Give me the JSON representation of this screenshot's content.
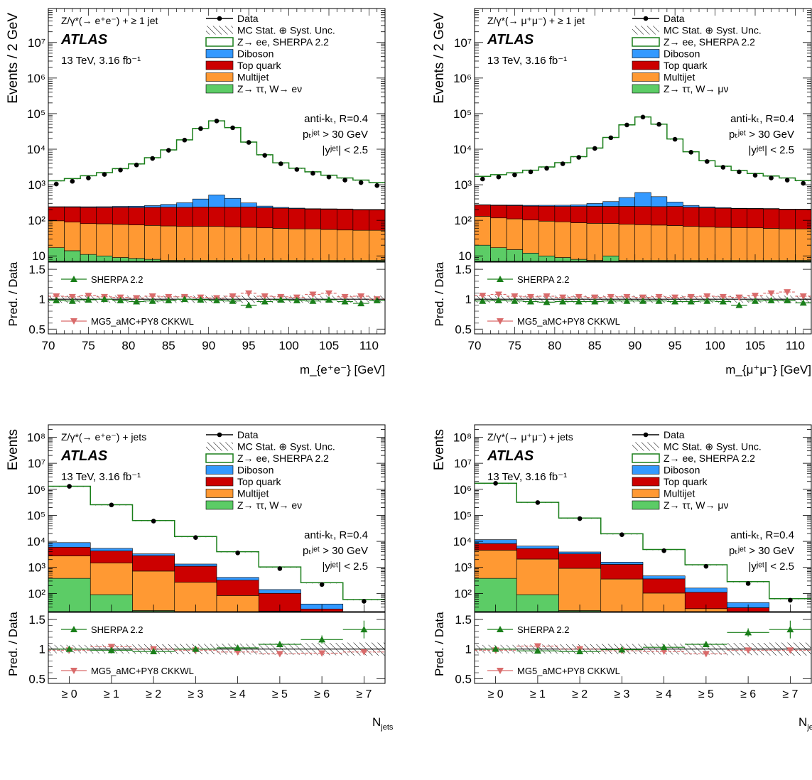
{
  "colors": {
    "data": "#000000",
    "z_mc": "#1a7f1a",
    "diboson": "#3399ff",
    "top": "#cc0000",
    "multijet": "#ff9933",
    "ztautau": "#5ccc66",
    "sherpa_ratio": "#1a7f1a",
    "mg5_ratio": "#d96b6b"
  },
  "common": {
    "atlas": "ATLAS",
    "energy_lumi": "13 TeV, 3.16 fb⁻¹",
    "jet_cuts": [
      "anti-kₜ, R=0.4",
      "pₜʲᵉᵗ > 30 GeV",
      "|yʲᵉᵗ| < 2.5"
    ],
    "ratio_ylabel": "Pred. / Data",
    "ratio_legend": [
      "SHERPA 2.2",
      "MG5_aMC+PY8 CKKWL"
    ]
  },
  "chart_data": [
    {
      "type": "bar",
      "panel": "top-left",
      "ylabel": "Events / 2 GeV",
      "xlabel": "m_{e⁺e⁻} [GeV]",
      "process_label": "Z/γ*(→ e⁺e⁻) + ≥ 1 jet",
      "legend": [
        "Data",
        "MC Stat. ⊕ Syst. Unc.",
        "Z→ ee, SHERPA 2.2",
        "Diboson",
        "Top quark",
        "Multijet",
        "Z→ ττ, W→ eν"
      ],
      "log_y": true,
      "xlim": [
        70,
        112
      ],
      "ylim": [
        7,
        90000000
      ],
      "ratio_ylim": [
        0.42,
        1.62
      ],
      "x_ticks": [
        70,
        75,
        80,
        85,
        90,
        95,
        100,
        105,
        110
      ],
      "y_ticks": [
        "10",
        "10²",
        "10³",
        "10⁴",
        "10⁵",
        "10⁶",
        "10⁷"
      ],
      "ratio_ticks": [
        "0.5",
        "1",
        "1.5"
      ],
      "bin_edges": [
        70,
        72,
        74,
        76,
        78,
        80,
        82,
        84,
        86,
        88,
        90,
        92,
        94,
        96,
        98,
        100,
        102,
        104,
        106,
        108,
        110,
        112
      ],
      "bin_centers": [
        71,
        73,
        75,
        77,
        79,
        81,
        83,
        85,
        87,
        89,
        91,
        93,
        95,
        97,
        99,
        101,
        103,
        105,
        107,
        109,
        111
      ],
      "data": [
        1050,
        1250,
        1550,
        1950,
        2600,
        3600,
        5500,
        9300,
        18000,
        38000,
        62000,
        40000,
        15500,
        6700,
        3900,
        2700,
        2100,
        1650,
        1350,
        1150,
        950
      ],
      "ztautau": [
        17,
        14,
        11,
        10,
        9,
        8.5,
        8,
        7.5,
        7.5,
        7.5,
        7.5,
        7.5,
        7.5,
        7.5,
        7.5,
        7.5,
        7.5,
        7.5,
        7.5,
        7.5,
        7.5
      ],
      "multijet": [
        80,
        75,
        70,
        70,
        68,
        66,
        64,
        62,
        60,
        60,
        60,
        58,
        56,
        54,
        52,
        50,
        50,
        48,
        46,
        45,
        45
      ],
      "top": [
        140,
        145,
        150,
        150,
        155,
        155,
        160,
        165,
        165,
        170,
        170,
        170,
        175,
        165,
        160,
        155,
        150,
        150,
        150,
        145,
        145
      ],
      "diboson": [
        5,
        8,
        10,
        12,
        15,
        20,
        28,
        45,
        80,
        160,
        280,
        180,
        70,
        25,
        12,
        8,
        5,
        5,
        5,
        5,
        5
      ],
      "ratio_sherpa": [
        0.98,
        0.97,
        0.99,
        1.0,
        0.98,
        0.96,
        0.97,
        0.98,
        1.0,
        0.99,
        0.98,
        0.97,
        0.9,
        0.96,
        0.99,
        0.98,
        0.97,
        0.99,
        0.96,
        0.93,
        0.98
      ],
      "ratio_mg5": [
        1.05,
        1.04,
        1.06,
        1.04,
        1.03,
        1.02,
        1.05,
        1.04,
        1.04,
        1.03,
        1.02,
        1.05,
        1.1,
        1.05,
        1.04,
        1.03,
        1.08,
        1.1,
        1.04,
        1.05,
        1.0
      ],
      "unc": 0.06
    },
    {
      "type": "bar",
      "panel": "top-right",
      "ylabel": "Events / 2 GeV",
      "xlabel": "m_{μ⁺μ⁻} [GeV]",
      "process_label": "Z/γ*(→ μ⁺μ⁻) + ≥ 1 jet",
      "legend": [
        "Data",
        "MC Stat. ⊕ Syst. Unc.",
        "Z→ ee, SHERPA 2.2",
        "Diboson",
        "Top quark",
        "Multijet",
        "Z→ ττ, W→ μν"
      ],
      "log_y": true,
      "xlim": [
        70,
        112
      ],
      "ylim": [
        7,
        90000000
      ],
      "ratio_ylim": [
        0.42,
        1.62
      ],
      "x_ticks": [
        70,
        75,
        80,
        85,
        90,
        95,
        100,
        105,
        110
      ],
      "y_ticks": [
        "10",
        "10²",
        "10³",
        "10⁴",
        "10⁵",
        "10⁶",
        "10⁷"
      ],
      "ratio_ticks": [
        "0.5",
        "1",
        "1.5"
      ],
      "bin_edges": [
        70,
        72,
        74,
        76,
        78,
        80,
        82,
        84,
        86,
        88,
        90,
        92,
        94,
        96,
        98,
        100,
        102,
        104,
        106,
        108,
        110,
        112
      ],
      "bin_centers": [
        71,
        73,
        75,
        77,
        79,
        81,
        83,
        85,
        87,
        89,
        91,
        93,
        95,
        97,
        99,
        101,
        103,
        105,
        107,
        109,
        111
      ],
      "data": [
        1450,
        1650,
        1900,
        2300,
        2900,
        3900,
        5900,
        10500,
        21000,
        48000,
        80000,
        50000,
        19000,
        8200,
        4500,
        3100,
        2300,
        1850,
        1550,
        1350,
        1100
      ],
      "ztautau": [
        20,
        17,
        15,
        12,
        10,
        9,
        8,
        7.5,
        10,
        7.5,
        7.5,
        7.5,
        7.5,
        7.5,
        7.5,
        7.5,
        7.5,
        7.5,
        7.5,
        7.5,
        7.5
      ],
      "multijet": [
        110,
        100,
        95,
        90,
        85,
        82,
        78,
        75,
        72,
        70,
        68,
        66,
        64,
        60,
        58,
        56,
        55,
        54,
        52,
        50,
        50
      ],
      "top": [
        140,
        145,
        150,
        150,
        155,
        155,
        160,
        165,
        165,
        170,
        170,
        170,
        175,
        165,
        160,
        155,
        150,
        150,
        150,
        145,
        145
      ],
      "diboson": [
        5,
        8,
        10,
        12,
        15,
        20,
        28,
        50,
        90,
        190,
        360,
        220,
        80,
        30,
        14,
        9,
        6,
        5,
        5,
        5,
        5
      ],
      "ratio_sherpa": [
        0.97,
        0.98,
        0.97,
        0.96,
        0.95,
        0.96,
        0.96,
        0.96,
        0.97,
        0.97,
        0.97,
        0.97,
        0.96,
        0.96,
        0.97,
        0.96,
        0.9,
        0.97,
        0.98,
        0.98,
        0.94
      ],
      "ratio_mg5": [
        1.06,
        1.08,
        1.05,
        1.04,
        1.05,
        1.03,
        1.04,
        1.03,
        1.04,
        1.04,
        1.03,
        1.04,
        1.03,
        1.04,
        1.05,
        1.04,
        1.03,
        1.06,
        1.1,
        1.12,
        1.05
      ],
      "unc": 0.06
    },
    {
      "type": "bar",
      "panel": "bottom-left",
      "ylabel": "Events",
      "xlabel": "N_jets",
      "process_label": "Z/γ*(→ e⁺e⁻) + jets",
      "legend": [
        "Data",
        "MC Stat. ⊕ Syst. Unc.",
        "Z→ ee, SHERPA 2.2",
        "Diboson",
        "Top quark",
        "Multijet",
        "Z→ ττ, W→ eν"
      ],
      "log_y": true,
      "xlim": [
        -0.5,
        7.5
      ],
      "ylim": [
        20,
        300000000
      ],
      "ratio_ylim": [
        0.42,
        1.62
      ],
      "categories": [
        "≥ 0",
        "≥ 1",
        "≥ 2",
        "≥ 3",
        "≥ 4",
        "≥ 5",
        "≥ 6",
        "≥ 7"
      ],
      "y_ticks": [
        "10²",
        "10³",
        "10⁴",
        "10⁵",
        "10⁶",
        "10⁷",
        "10⁸"
      ],
      "ratio_ticks": [
        "0.5",
        "1",
        "1.5"
      ],
      "data": [
        1300000,
        250000,
        60000,
        14000,
        3600,
        900,
        220,
        50
      ],
      "ztautau": [
        380,
        90,
        22,
        8,
        3,
        1,
        0.3,
        0.1
      ],
      "multijet": [
        2400,
        1400,
        700,
        260,
        80,
        20,
        5,
        1
      ],
      "top": [
        3200,
        2800,
        2100,
        850,
        240,
        80,
        20,
        4
      ],
      "diboson": [
        3000,
        1100,
        500,
        230,
        90,
        40,
        14,
        3
      ],
      "ratio_sherpa": [
        1.0,
        0.98,
        0.96,
        1.0,
        1.02,
        1.08,
        1.16,
        1.33
      ],
      "ratio_mg5": [
        0.98,
        1.04,
        1.0,
        0.98,
        0.95,
        0.92,
        0.93,
        0.95
      ],
      "ratio_sherpa_err": [
        0.02,
        0.02,
        0.02,
        0.02,
        0.03,
        0.04,
        0.07,
        0.15
      ],
      "ratio_mg5_err": [
        0.02,
        0.02,
        0.02,
        0.02,
        0.03,
        0.04,
        0.07,
        0.15
      ],
      "unc": 0.07
    },
    {
      "type": "bar",
      "panel": "bottom-right",
      "ylabel": "Events",
      "xlabel": "N_jets",
      "process_label": "Z/γ*(→ μ⁺μ⁻) + jets",
      "legend": [
        "Data",
        "MC Stat. ⊕ Syst. Unc.",
        "Z→ ee, SHERPA 2.2",
        "Diboson",
        "Top quark",
        "Multijet",
        "Z→ ττ, W→ μν"
      ],
      "log_y": true,
      "xlim": [
        -0.5,
        7.5
      ],
      "ylim": [
        20,
        300000000
      ],
      "ratio_ylim": [
        0.42,
        1.62
      ],
      "categories": [
        "≥ 0",
        "≥ 1",
        "≥ 2",
        "≥ 3",
        "≥ 4",
        "≥ 5",
        "≥ 6",
        "≥ 7"
      ],
      "y_ticks": [
        "10²",
        "10³",
        "10⁴",
        "10⁵",
        "10⁶",
        "10⁷",
        "10⁸"
      ],
      "ratio_ticks": [
        "0.5",
        "1",
        "1.5"
      ],
      "data": [
        1700000,
        310000,
        75000,
        18000,
        4400,
        1100,
        240,
        55
      ],
      "ztautau": [
        380,
        90,
        22,
        8,
        3,
        1,
        0.3,
        0.1
      ],
      "multijet": [
        4200,
        2000,
        900,
        350,
        100,
        25,
        6,
        1
      ],
      "top": [
        3600,
        3200,
        2400,
        950,
        260,
        85,
        22,
        4
      ],
      "diboson": [
        3500,
        1300,
        600,
        280,
        110,
        50,
        16,
        3
      ],
      "ratio_sherpa": [
        1.0,
        0.97,
        0.96,
        0.99,
        1.03,
        1.08,
        1.28,
        1.33
      ],
      "ratio_mg5": [
        0.98,
        1.05,
        1.0,
        0.97,
        0.96,
        0.92,
        0.98,
        0.98
      ],
      "ratio_sherpa_err": [
        0.02,
        0.02,
        0.02,
        0.02,
        0.03,
        0.04,
        0.07,
        0.15
      ],
      "ratio_mg5_err": [
        0.02,
        0.02,
        0.02,
        0.02,
        0.03,
        0.04,
        0.07,
        0.15
      ],
      "unc": 0.07
    }
  ]
}
